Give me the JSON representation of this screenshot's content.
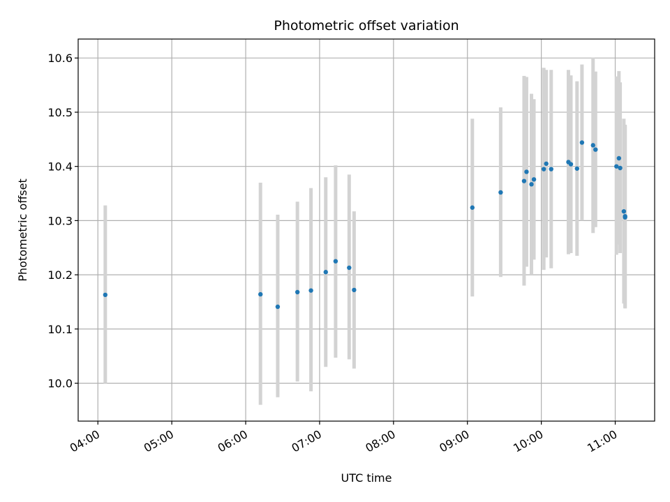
{
  "chart_data": {
    "type": "scatter",
    "title": "Photometric offset variation",
    "xlabel": "UTC time",
    "ylabel": "Photometric offset",
    "x_unit": "UTC time (HH:MM)",
    "xlim": [
      "03:44",
      "11:32"
    ],
    "ylim": [
      9.93,
      10.635
    ],
    "grid": true,
    "colors": {
      "point": "#1f77b4",
      "errorbar": "#d3d3d3",
      "grid": "#b0b0b0"
    },
    "x_ticks": [
      "04:00",
      "05:00",
      "06:00",
      "07:00",
      "08:00",
      "09:00",
      "10:00",
      "11:00"
    ],
    "y_ticks": [
      "10.0",
      "10.1",
      "10.2",
      "10.3",
      "10.4",
      "10.5",
      "10.6"
    ],
    "points": [
      {
        "x": "04:06",
        "y": 10.163,
        "lo": 10.0,
        "hi": 10.328
      },
      {
        "x": "06:12",
        "y": 10.164,
        "lo": 9.96,
        "hi": 10.37
      },
      {
        "x": "06:26",
        "y": 10.141,
        "lo": 9.974,
        "hi": 10.311
      },
      {
        "x": "06:42",
        "y": 10.168,
        "lo": 10.003,
        "hi": 10.335
      },
      {
        "x": "06:53",
        "y": 10.171,
        "lo": 9.985,
        "hi": 10.36
      },
      {
        "x": "07:05",
        "y": 10.205,
        "lo": 10.03,
        "hi": 10.38
      },
      {
        "x": "07:13",
        "y": 10.225,
        "lo": 10.047,
        "hi": 10.402
      },
      {
        "x": "07:24",
        "y": 10.213,
        "lo": 10.044,
        "hi": 10.385
      },
      {
        "x": "07:28",
        "y": 10.172,
        "lo": 10.027,
        "hi": 10.317
      },
      {
        "x": "09:04",
        "y": 10.324,
        "lo": 10.16,
        "hi": 10.488
      },
      {
        "x": "09:27",
        "y": 10.352,
        "lo": 10.196,
        "hi": 10.509
      },
      {
        "x": "09:46",
        "y": 10.373,
        "lo": 10.18,
        "hi": 10.567
      },
      {
        "x": "09:48",
        "y": 10.39,
        "lo": 10.215,
        "hi": 10.565
      },
      {
        "x": "09:52",
        "y": 10.367,
        "lo": 10.2,
        "hi": 10.534
      },
      {
        "x": "09:54",
        "y": 10.376,
        "lo": 10.228,
        "hi": 10.524
      },
      {
        "x": "10:02",
        "y": 10.395,
        "lo": 10.209,
        "hi": 10.582
      },
      {
        "x": "10:04",
        "y": 10.405,
        "lo": 10.232,
        "hi": 10.578
      },
      {
        "x": "10:08",
        "y": 10.395,
        "lo": 10.212,
        "hi": 10.578
      },
      {
        "x": "10:22",
        "y": 10.408,
        "lo": 10.238,
        "hi": 10.578
      },
      {
        "x": "10:24",
        "y": 10.404,
        "lo": 10.24,
        "hi": 10.568
      },
      {
        "x": "10:29",
        "y": 10.396,
        "lo": 10.235,
        "hi": 10.557
      },
      {
        "x": "10:33",
        "y": 10.444,
        "lo": 10.3,
        "hi": 10.588
      },
      {
        "x": "10:42",
        "y": 10.439,
        "lo": 10.277,
        "hi": 10.601
      },
      {
        "x": "10:44",
        "y": 10.431,
        "lo": 10.288,
        "hi": 10.575
      },
      {
        "x": "11:01",
        "y": 10.4,
        "lo": 10.237,
        "hi": 10.566
      },
      {
        "x": "11:03",
        "y": 10.415,
        "lo": 10.256,
        "hi": 10.576
      },
      {
        "x": "11:04",
        "y": 10.397,
        "lo": 10.24,
        "hi": 10.555
      },
      {
        "x": "11:07",
        "y": 10.317,
        "lo": 10.147,
        "hi": 10.488
      },
      {
        "x": "11:08",
        "y": 10.308,
        "lo": 10.139,
        "hi": 10.477
      },
      {
        "x": "11:08",
        "y": 10.306,
        "lo": 10.138,
        "hi": 10.475
      }
    ]
  }
}
